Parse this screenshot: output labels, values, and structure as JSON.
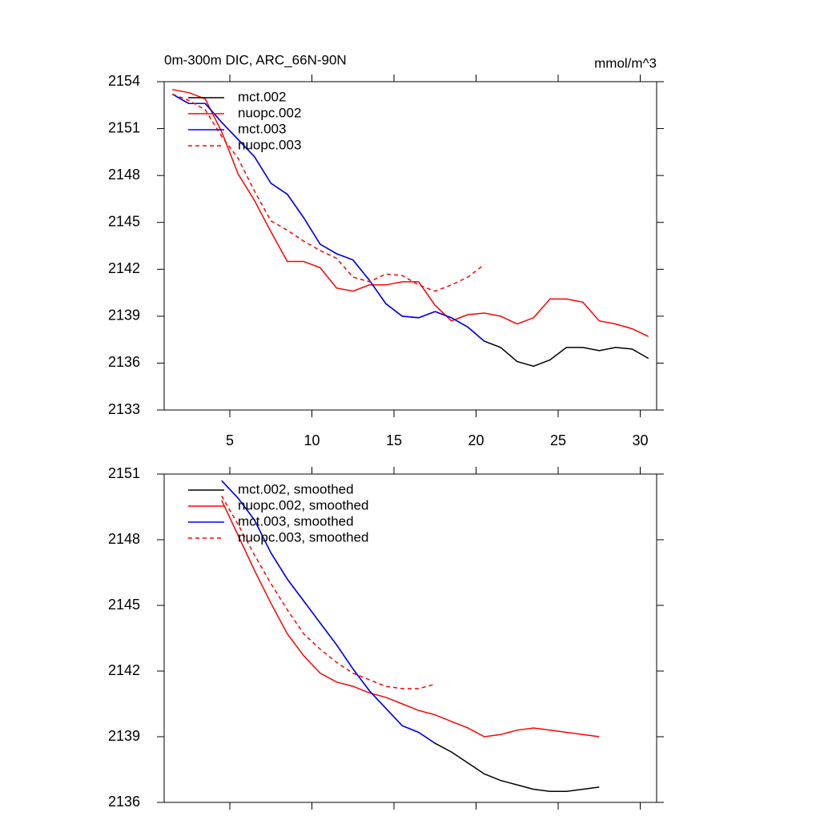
{
  "chart_data": [
    {
      "type": "line",
      "title": "0m-300m DIC, ARC_66N-90N",
      "units_label": "mmol/m^3",
      "x": [
        1.5,
        2.5,
        3.5,
        4.5,
        5.5,
        6.5,
        7.5,
        8.5,
        9.5,
        10.5,
        11.5,
        12.5,
        13.5,
        14.5,
        15.5,
        16.5,
        17.5,
        18.5,
        19.5,
        20.5,
        21.5,
        22.5,
        23.5,
        24.5,
        25.5,
        26.5,
        27.5,
        28.5,
        29.5,
        30.5
      ],
      "series": [
        {
          "name": "mct.002",
          "color": "#000000",
          "dashed": false,
          "values": [
            2153.2,
            2152.6,
            2152.6,
            2151.4,
            2150.3,
            2149.2,
            2147.5,
            2146.8,
            2145.3,
            2143.6,
            2143.0,
            2142.6,
            2141.3,
            2139.8,
            2139.0,
            2138.9,
            2139.3,
            2138.9,
            2138.3,
            2137.4,
            2137.0,
            2136.1,
            2135.8,
            2136.2,
            2137.0,
            2137.0,
            2136.8,
            2137.0,
            2136.9,
            2136.3
          ]
        },
        {
          "name": "nuopc.002",
          "color": "#ff0000",
          "dashed": false,
          "values": [
            2153.5,
            2153.3,
            2152.9,
            2150.8,
            2148.1,
            2146.4,
            2144.4,
            2142.5,
            2142.5,
            2142.1,
            2140.8,
            2140.6,
            2141.0,
            2141.0,
            2141.2,
            2141.2,
            2139.7,
            2138.7,
            2139.1,
            2139.2,
            2139.0,
            2138.5,
            2138.9,
            2140.1,
            2140.1,
            2139.9,
            2138.7,
            2138.5,
            2138.2,
            2137.7
          ]
        },
        {
          "name": "mct.003",
          "color": "#0000ff",
          "dashed": false,
          "values": [
            2153.2,
            2152.6,
            2152.6,
            2151.4,
            2150.3,
            2149.2,
            2147.5,
            2146.8,
            2145.3,
            2143.6,
            2143.0,
            2142.6,
            2141.3,
            2139.8,
            2139.0,
            2138.9,
            2139.3,
            2138.9,
            2138.3,
            2137.4,
            null,
            null,
            null,
            null,
            null,
            null,
            null,
            null,
            null,
            null
          ]
        },
        {
          "name": "nuopc.003",
          "color": "#ff0000",
          "dashed": true,
          "values": [
            2153.2,
            2152.8,
            2152.2,
            2150.5,
            2149.1,
            2147.0,
            2145.1,
            2144.5,
            2143.8,
            2143.2,
            2142.7,
            2141.5,
            2141.2,
            2141.7,
            2141.6,
            2141.0,
            2140.6,
            2141.0,
            2141.5,
            2142.3,
            null,
            null,
            null,
            null,
            null,
            null,
            null,
            null,
            null,
            null
          ]
        }
      ],
      "xlim": [
        1,
        31
      ],
      "xticks": [
        5,
        10,
        15,
        20,
        25,
        30
      ],
      "xtick_labels": true,
      "ylim": [
        2133,
        2154
      ],
      "yticks": [
        2133,
        2136,
        2139,
        2142,
        2145,
        2148,
        2151,
        2154
      ],
      "legend": "upper left"
    },
    {
      "type": "line",
      "x": [
        4.5,
        5.5,
        6.5,
        7.5,
        8.5,
        9.5,
        10.5,
        11.5,
        12.5,
        13.5,
        14.5,
        15.5,
        16.5,
        17.5,
        18.5,
        19.5,
        20.5,
        21.5,
        22.5,
        23.5,
        24.5,
        25.5,
        26.5,
        27.5
      ],
      "series": [
        {
          "name": "mct.002, smoothed",
          "color": "#000000",
          "dashed": false,
          "values": [
            2150.7,
            2149.9,
            2148.9,
            2147.4,
            2146.2,
            2145.2,
            2144.2,
            2143.2,
            2142.1,
            2141.1,
            2140.3,
            2139.5,
            2139.2,
            2138.7,
            2138.3,
            2137.8,
            2137.3,
            2137.0,
            2136.8,
            2136.6,
            2136.5,
            2136.5,
            2136.6,
            2136.7
          ]
        },
        {
          "name": "nuopc.002, smoothed",
          "color": "#ff0000",
          "dashed": false,
          "values": [
            2149.8,
            2148.2,
            2146.6,
            2145.1,
            2143.7,
            2142.7,
            2141.9,
            2141.5,
            2141.3,
            2141.0,
            2140.8,
            2140.5,
            2140.2,
            2140.0,
            2139.7,
            2139.4,
            2139.0,
            2139.1,
            2139.3,
            2139.4,
            2139.3,
            2139.2,
            2139.1,
            2139.0
          ]
        },
        {
          "name": "mct.003, smoothed",
          "color": "#0000ff",
          "dashed": false,
          "values": [
            2150.7,
            2149.9,
            2148.9,
            2147.4,
            2146.2,
            2145.2,
            2144.2,
            2143.2,
            2142.1,
            2141.1,
            2140.3,
            2139.5,
            2139.2,
            2138.7,
            null,
            null,
            null,
            null,
            null,
            null,
            null,
            null,
            null,
            null
          ]
        },
        {
          "name": "nuopc.003, smoothed",
          "color": "#ff0000",
          "dashed": true,
          "values": [
            2150.0,
            2148.7,
            2147.3,
            2146.0,
            2144.8,
            2143.7,
            2143.0,
            2142.4,
            2141.9,
            2141.6,
            2141.3,
            2141.2,
            2141.2,
            2141.4,
            null,
            null,
            null,
            null,
            null,
            null,
            null,
            null,
            null,
            null
          ]
        }
      ],
      "xlim": [
        1,
        31
      ],
      "xticks": [
        5,
        10,
        15,
        20,
        25,
        30
      ],
      "xtick_labels": false,
      "ylim": [
        2136,
        2151
      ],
      "yticks": [
        2136,
        2139,
        2142,
        2145,
        2148,
        2151
      ],
      "legend": "upper left"
    }
  ]
}
